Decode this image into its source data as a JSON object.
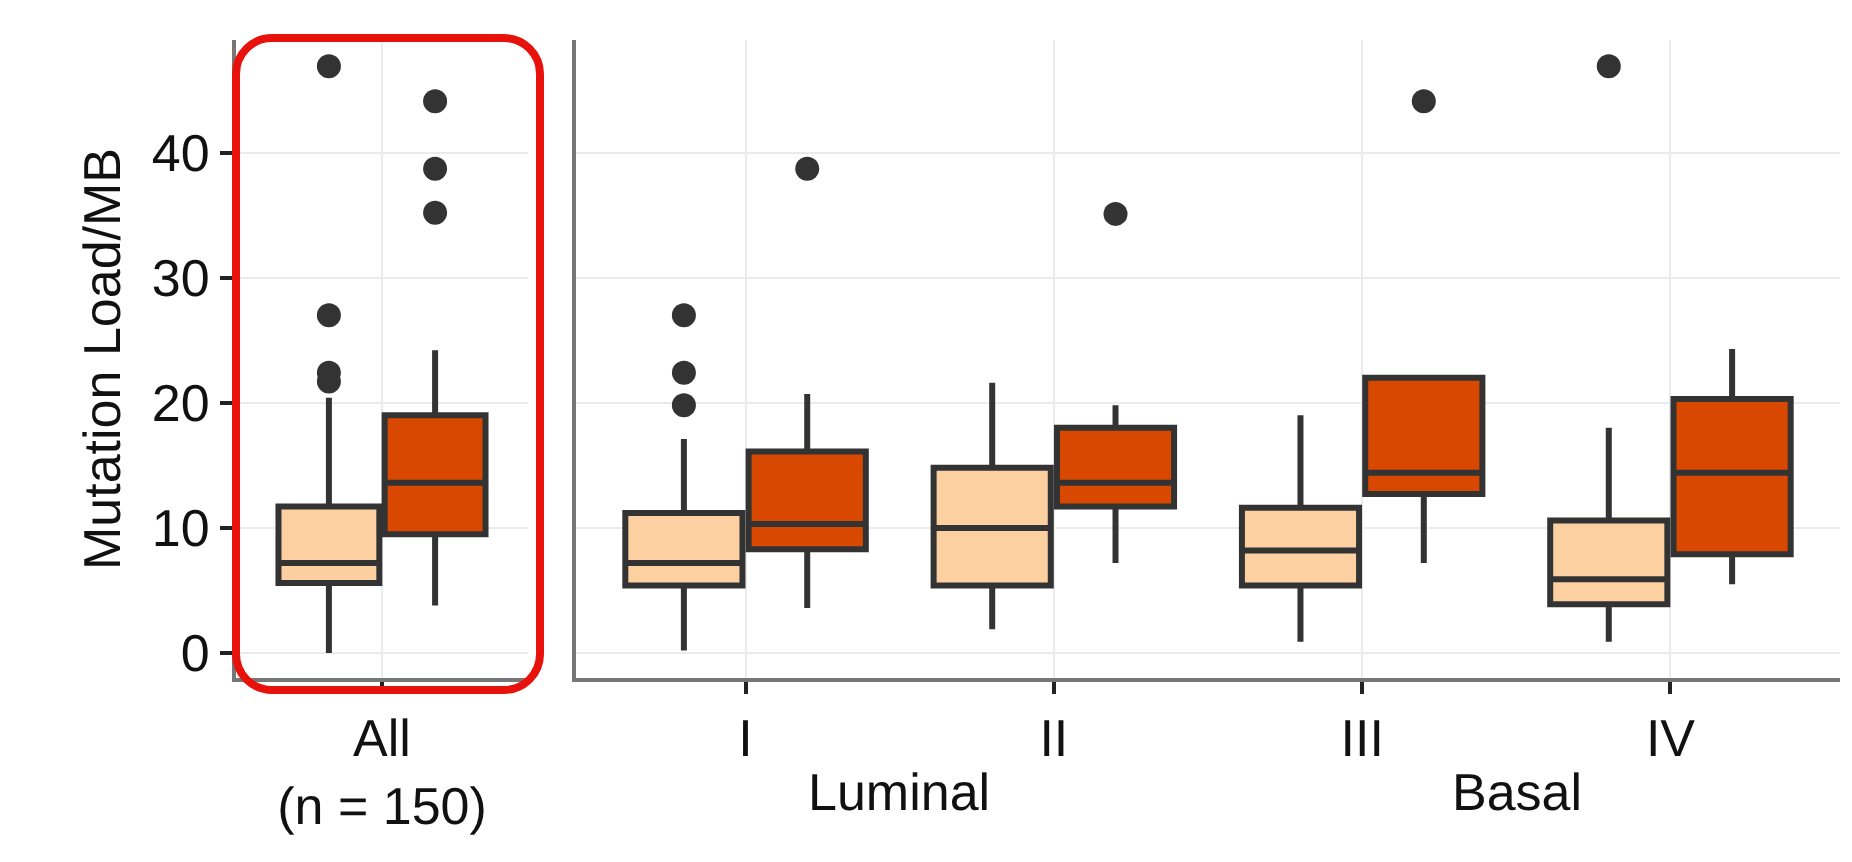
{
  "chart_data": [
    {
      "type": "box",
      "ylabel": "Mutation Load/MB",
      "categories": [
        "All\n(n = 150)"
      ],
      "ylim": [
        -2,
        49
      ],
      "yticks": [
        0,
        10,
        20,
        30,
        40
      ],
      "grid": true,
      "series": [
        {
          "color": "#fdd0a2",
          "boxes": [
            {
              "low": 0,
              "q1": 5.6,
              "median": 7.2,
              "q3": 11.7,
              "high": 20.4,
              "outliers": [
                21.7,
                22.4,
                27,
                46.9
              ]
            }
          ]
        },
        {
          "color": "#d94801",
          "boxes": [
            {
              "low": 3.8,
              "q1": 9.5,
              "median": 13.6,
              "q3": 19,
              "high": 24.2,
              "outliers": [
                35.2,
                38.7,
                44.1
              ]
            }
          ]
        }
      ]
    },
    {
      "type": "box",
      "categories": [
        "I",
        "II",
        "III",
        "IV"
      ],
      "ylim": [
        -2,
        49
      ],
      "yticks": [
        0,
        10,
        20,
        30,
        40
      ],
      "grid": true,
      "tick_labels": "x",
      "annotations": [
        "Luminal",
        "Basal"
      ],
      "series": [
        {
          "color": "#fdd0a2",
          "boxes": [
            {
              "low": 0.2,
              "q1": 5.4,
              "median": 7.2,
              "q3": 11.2,
              "high": 17.1,
              "outliers": [
                19.8,
                22.4,
                27
              ]
            },
            {
              "low": 1.9,
              "q1": 5.4,
              "median": 10,
              "q3": 14.8,
              "high": 21.6
            },
            {
              "low": 0.9,
              "q1": 5.4,
              "median": 8.2,
              "q3": 11.6,
              "high": 19
            },
            {
              "low": 0.9,
              "q1": 3.9,
              "median": 5.9,
              "q3": 10.6,
              "high": 18,
              "outliers": [
                46.9
              ]
            }
          ]
        },
        {
          "color": "#d94801",
          "boxes": [
            {
              "low": 3.6,
              "q1": 8.3,
              "median": 10.3,
              "q3": 16.1,
              "high": 20.7,
              "outliers": [
                38.7
              ]
            },
            {
              "low": 7.2,
              "q1": 11.7,
              "median": 13.6,
              "q3": 18,
              "high": 19.8,
              "outliers": [
                35.1
              ]
            },
            {
              "low": 7.2,
              "q1": 12.7,
              "median": 14.4,
              "q3": 22,
              "high": 22,
              "outliers": [
                44.1
              ]
            },
            {
              "low": 5.5,
              "q1": 7.9,
              "median": 14.4,
              "q3": 20.3,
              "high": 24.3
            }
          ]
        }
      ]
    }
  ]
}
